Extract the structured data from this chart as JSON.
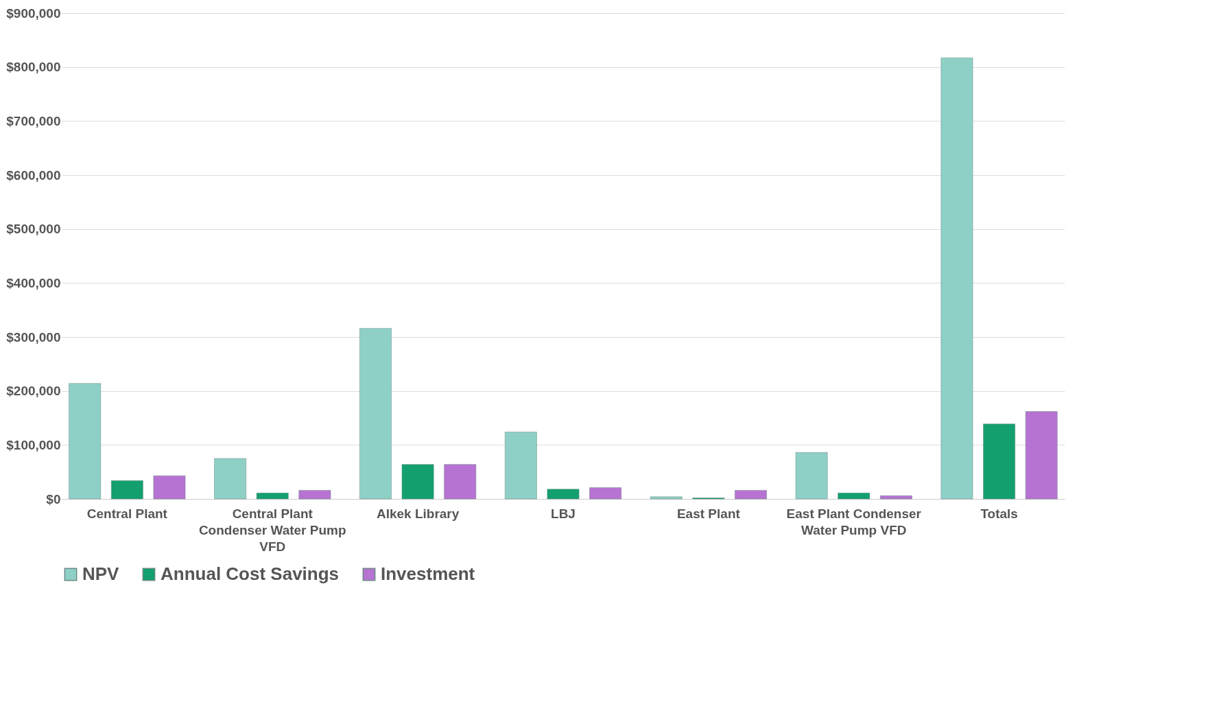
{
  "chart_data": {
    "type": "bar",
    "categories": [
      "Central Plant",
      "Central Plant Condenser Water Pump VFD",
      "Alkek Library",
      "LBJ",
      "East Plant",
      "East Plant Condenser Water Pump VFD",
      "Totals"
    ],
    "series": [
      {
        "name": "NPV",
        "color": "#8fd0c6",
        "values": [
          214000,
          75000,
          316000,
          124000,
          4000,
          86000,
          817000
        ]
      },
      {
        "name": "Annual Cost Savings",
        "color": "#14a06e",
        "values": [
          34000,
          11000,
          64000,
          18000,
          2000,
          11000,
          139000
        ]
      },
      {
        "name": "Investment",
        "color": "#b673d2",
        "values": [
          43000,
          16000,
          64000,
          21000,
          16000,
          6000,
          162000
        ]
      }
    ],
    "ylim": [
      0,
      900000
    ],
    "yticks": [
      {
        "value": 0,
        "label": "$0"
      },
      {
        "value": 100000,
        "label": "$100,000"
      },
      {
        "value": 200000,
        "label": "$200,000"
      },
      {
        "value": 300000,
        "label": "$300,000"
      },
      {
        "value": 400000,
        "label": "$400,000"
      },
      {
        "value": 500000,
        "label": "$500,000"
      },
      {
        "value": 600000,
        "label": "$600,000"
      },
      {
        "value": 700000,
        "label": "$700,000"
      },
      {
        "value": 800000,
        "label": "$800,000"
      },
      {
        "value": 900000,
        "label": "$900,000"
      }
    ],
    "grid": "y",
    "legend": "bottom"
  }
}
